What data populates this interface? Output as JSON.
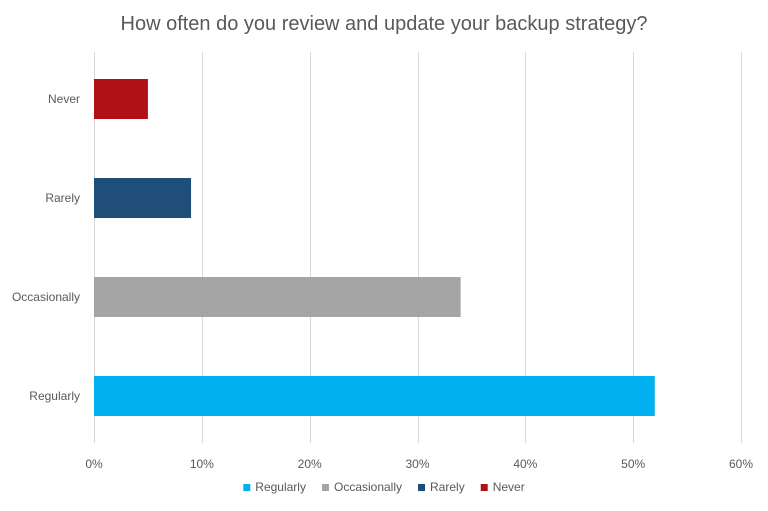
{
  "chart_data": {
    "type": "bar",
    "orientation": "horizontal",
    "title": "How often do you review and update your backup strategy?",
    "categories": [
      "Never",
      "Rarely",
      "Occasionally",
      "Regularly"
    ],
    "values": [
      5,
      9,
      34,
      52
    ],
    "value_unit": "%",
    "colors": [
      "#B01116",
      "#1F4E79",
      "#A5A5A5",
      "#00B0F0"
    ],
    "xlim": [
      0,
      60
    ],
    "xticks": [
      "0%",
      "10%",
      "20%",
      "30%",
      "40%",
      "50%",
      "60%"
    ],
    "grid": "vertical",
    "legend": {
      "placement": "bottom",
      "entries": [
        "Regularly",
        "Occasionally",
        "Rarely",
        "Never"
      ],
      "colors": [
        "#00B0F0",
        "#A5A5A5",
        "#1F4E79",
        "#B01116"
      ]
    }
  }
}
